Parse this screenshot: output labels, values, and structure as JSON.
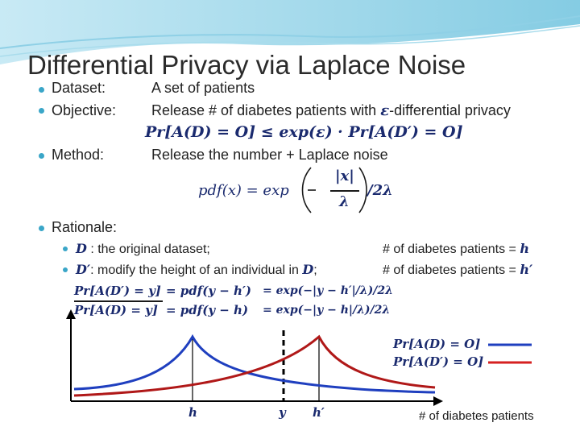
{
  "title": "Differential Privacy via Laplace Noise",
  "bullets": {
    "dataset_label": "Dataset:",
    "dataset_text": "A set of patients",
    "objective_label": "Objective:",
    "objective_text_pre": "Release # of diabetes patients with",
    "objective_eps": "ε",
    "objective_text_post": "-differential privacy",
    "objective_formula": "Pr[A(D) = O] ≤ exp(ε) · Pr[A(D′) = O]",
    "method_label": "Method:",
    "method_text": "Release the number + Laplace noise",
    "method_formula_lhs": "pdf(x) = exp",
    "method_formula_num": "|x|",
    "method_formula_den": "λ",
    "method_formula_tail": "/2λ",
    "rationale_label": "Rationale:",
    "sub1_var": "D",
    "sub1_text": " : the original dataset;",
    "sub1_right": "# of diabetes patients = ",
    "sub1_right_var": "h",
    "sub2_var": "D′",
    "sub2_text": ": modify the height of an individual in ",
    "sub2_text_var": "D",
    "sub2_text_end": ";",
    "sub2_right": "# of diabetes patients = ",
    "sub2_right_var": "h′"
  },
  "ratio": {
    "num_lhs": "Pr[A(D′) = y]",
    "den_lhs": "Pr[A(D) = y]",
    "num_mid": "= pdf(y − h′)",
    "den_mid": "= pdf(y − h)",
    "num_rhs": "= exp(−|y − h′|/λ)/2λ",
    "den_rhs": "= exp(−|y − h|/λ)/2λ"
  },
  "plot": {
    "legend": [
      {
        "label": "Pr[A(D) = O]",
        "color": "#1f3fbf"
      },
      {
        "label": "Pr[A(D′) = O]",
        "color": "#d62020"
      }
    ],
    "x_tick_h": "h",
    "x_tick_y": "y",
    "x_tick_hp": "h′",
    "x_axis_label": "# of diabetes patients"
  },
  "colors": {
    "accent": "#3aa6c8",
    "var_blue": "#1a2a6e",
    "curve_blue": "#1f3fbf",
    "curve_red": "#b01818"
  }
}
